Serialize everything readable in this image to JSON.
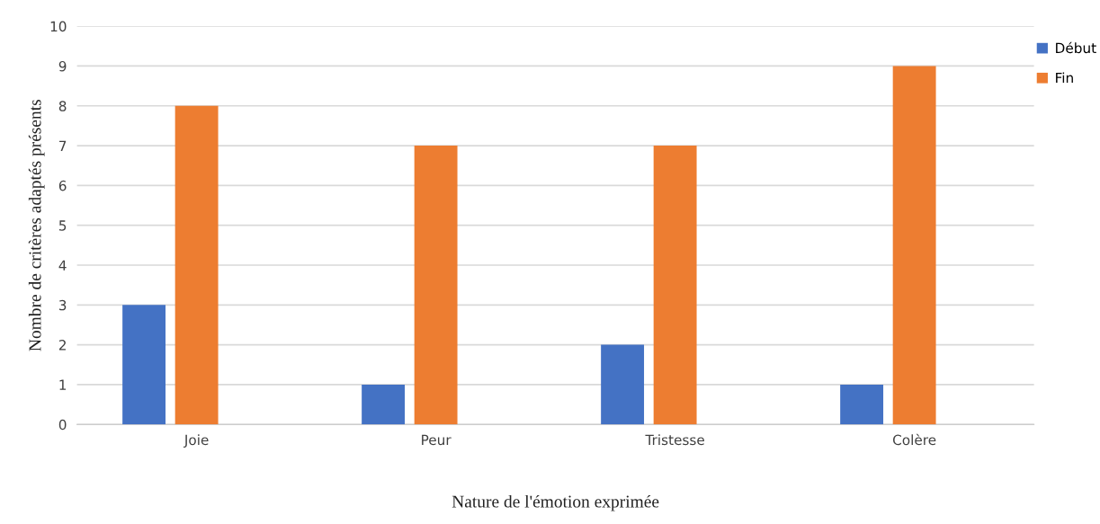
{
  "chart_data": {
    "type": "bar",
    "xlabel": "Nature de l'émotion exprimée",
    "ylabel": "Nombre de critères adaptés présents",
    "categories": [
      "Joie",
      "Peur",
      "Tristesse",
      "Colère"
    ],
    "series": [
      {
        "name": "Début",
        "color": "#4472c4",
        "values": [
          3,
          1,
          2,
          1
        ]
      },
      {
        "name": "Fin",
        "color": "#ed7d31",
        "values": [
          8,
          7,
          7,
          9
        ]
      }
    ],
    "ylim": [
      0,
      10
    ],
    "yticks": [
      0,
      1,
      2,
      3,
      4,
      5,
      6,
      7,
      8,
      9,
      10
    ],
    "grid": "y",
    "legend": "top right"
  }
}
